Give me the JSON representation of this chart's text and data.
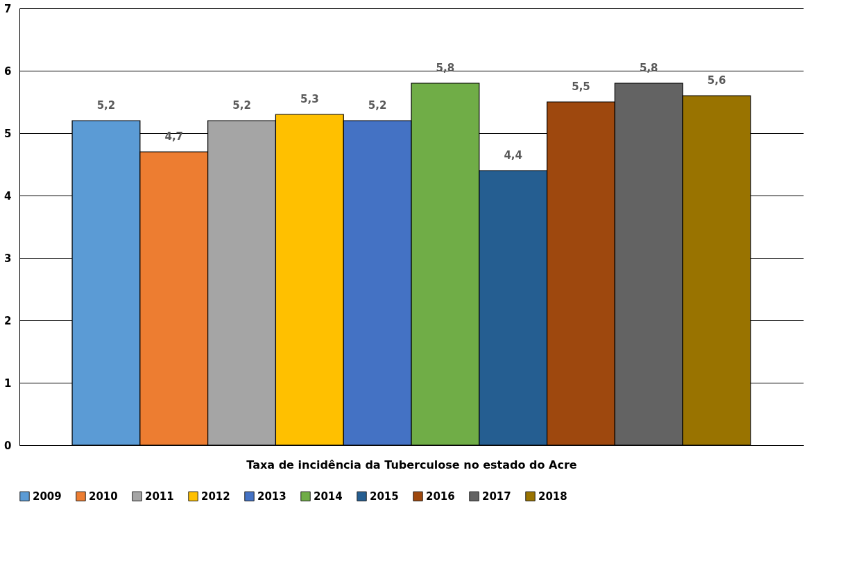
{
  "chart_data": {
    "type": "bar",
    "xlabel": "Taxa de incidência da Tuberculose no estado do Acre",
    "categories": [
      null
    ],
    "series": [
      {
        "name": "2009",
        "color": "#5b9bd5",
        "values": [
          5.2
        ],
        "value_labels": [
          "5,2"
        ]
      },
      {
        "name": "2010",
        "color": "#ed7d31",
        "values": [
          4.7
        ],
        "value_labels": [
          "4,7"
        ]
      },
      {
        "name": "2011",
        "color": "#a5a5a5",
        "values": [
          5.2
        ],
        "value_labels": [
          "5,2"
        ]
      },
      {
        "name": "2012",
        "color": "#ffc000",
        "values": [
          5.3
        ],
        "value_labels": [
          "5,3"
        ]
      },
      {
        "name": "2013",
        "color": "#4472c4",
        "values": [
          5.2
        ],
        "value_labels": [
          "5,2"
        ]
      },
      {
        "name": "2014",
        "color": "#70ad47",
        "values": [
          5.8
        ],
        "value_labels": [
          "5,8"
        ]
      },
      {
        "name": "2015",
        "color": "#255e91",
        "values": [
          4.4
        ],
        "value_labels": [
          "4,4"
        ]
      },
      {
        "name": "2016",
        "color": "#9e480e",
        "values": [
          5.5
        ],
        "value_labels": [
          "5,5"
        ]
      },
      {
        "name": "2017",
        "color": "#636363",
        "values": [
          5.8
        ],
        "value_labels": [
          "5,8"
        ]
      },
      {
        "name": "2018",
        "color": "#997300",
        "values": [
          5.6
        ],
        "value_labels": [
          "5,6"
        ]
      }
    ],
    "ylim": [
      0,
      7
    ],
    "yticks": [
      0,
      1,
      2,
      3,
      4,
      5,
      6,
      7
    ],
    "grid": "y",
    "legend": "bottom",
    "tick_labels": "y"
  }
}
